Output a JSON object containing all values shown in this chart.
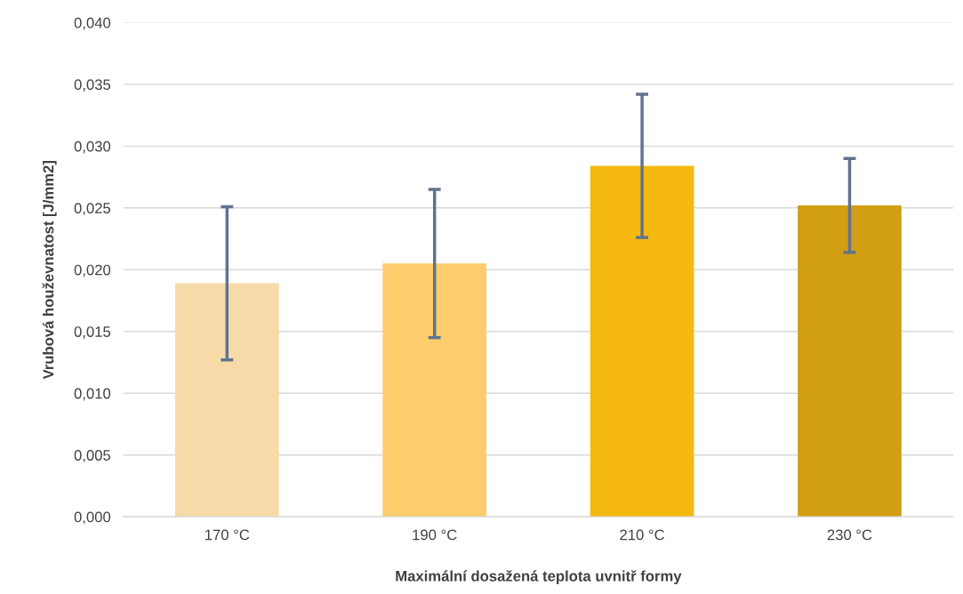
{
  "chart_data": {
    "type": "bar",
    "xlabel": "Maximální dosažená teplota uvnitř formy",
    "ylabel": "Vrubová houževnatost [J/mm2]",
    "categories": [
      "170 °C",
      "190 °C",
      "210 °C",
      "230 °C"
    ],
    "values": [
      0.0189,
      0.0205,
      0.0284,
      0.0252
    ],
    "errors": [
      0.0062,
      0.006,
      0.0058,
      0.0038
    ],
    "colors": [
      "#f6dba8",
      "#fbcd6c",
      "#f6b912",
      "#d29e14"
    ],
    "ylim": [
      0,
      0.04
    ],
    "yticks": [
      {
        "value": 0,
        "label": "0,000"
      },
      {
        "value": 0.005,
        "label": "0,005"
      },
      {
        "value": 0.01,
        "label": "0,010"
      },
      {
        "value": 0.015,
        "label": "0,015"
      },
      {
        "value": 0.02,
        "label": "0,020"
      },
      {
        "value": 0.025,
        "label": "0,025"
      },
      {
        "value": 0.03,
        "label": "0,030"
      },
      {
        "value": 0.035,
        "label": "0,035"
      },
      {
        "value": 0.04,
        "label": "0,040"
      }
    ],
    "grid": "y"
  }
}
